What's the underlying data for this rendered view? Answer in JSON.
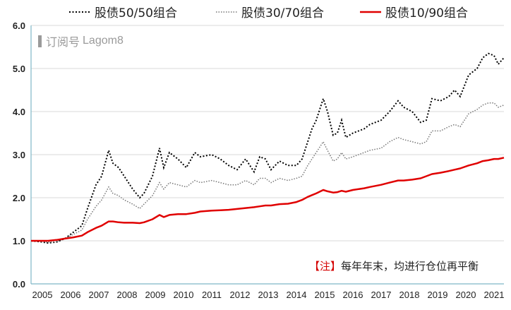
{
  "legend": [
    {
      "label": "股债50/50组合",
      "color": "#000000",
      "style": "dotted",
      "width": 2
    },
    {
      "label": "股债30/70组合",
      "color": "#777777",
      "style": "dotted",
      "width": 1.5
    },
    {
      "label": "股债10/90组合",
      "color": "#e00000",
      "style": "solid",
      "width": 2.5
    }
  ],
  "watermark": {
    "cn": "订阅号",
    "latin": "Lagom8"
  },
  "note": {
    "bracket": "【注】",
    "text": "每年年末，均进行仓位再平衡"
  },
  "chart_data": {
    "type": "line",
    "title": "",
    "xlabel": "",
    "ylabel": "",
    "xlim": [
      2005.0,
      2021.75
    ],
    "ylim": [
      0,
      6
    ],
    "yticks": [
      "0.0",
      "1.0",
      "2.0",
      "3.0",
      "4.0",
      "5.0",
      "6.0"
    ],
    "xticks": [
      "2005",
      "2006",
      "2007",
      "2008",
      "2009",
      "2010",
      "2011",
      "2012",
      "2013",
      "2014",
      "2015",
      "2016",
      "2017",
      "2018",
      "2019",
      "2020",
      "2021"
    ],
    "grid": true,
    "legend_position": "top",
    "series": [
      {
        "name": "股债50/50组合",
        "points": [
          [
            2005.0,
            1.0
          ],
          [
            2005.3,
            0.98
          ],
          [
            2005.6,
            0.95
          ],
          [
            2005.9,
            0.97
          ],
          [
            2006.2,
            1.05
          ],
          [
            2006.5,
            1.2
          ],
          [
            2006.8,
            1.35
          ],
          [
            2007.0,
            1.75
          ],
          [
            2007.3,
            2.3
          ],
          [
            2007.5,
            2.5
          ],
          [
            2007.75,
            3.1
          ],
          [
            2007.9,
            2.8
          ],
          [
            2008.1,
            2.7
          ],
          [
            2008.3,
            2.5
          ],
          [
            2008.6,
            2.2
          ],
          [
            2008.85,
            2.0
          ],
          [
            2009.0,
            2.1
          ],
          [
            2009.3,
            2.5
          ],
          [
            2009.55,
            3.15
          ],
          [
            2009.7,
            2.7
          ],
          [
            2009.9,
            3.05
          ],
          [
            2010.2,
            2.9
          ],
          [
            2010.5,
            2.7
          ],
          [
            2010.8,
            3.05
          ],
          [
            2011.0,
            2.95
          ],
          [
            2011.4,
            3.0
          ],
          [
            2011.7,
            2.9
          ],
          [
            2012.0,
            2.75
          ],
          [
            2012.3,
            2.65
          ],
          [
            2012.6,
            2.9
          ],
          [
            2012.9,
            2.6
          ],
          [
            2013.1,
            2.95
          ],
          [
            2013.3,
            2.9
          ],
          [
            2013.5,
            2.65
          ],
          [
            2013.8,
            2.85
          ],
          [
            2014.1,
            2.75
          ],
          [
            2014.4,
            2.75
          ],
          [
            2014.6,
            2.9
          ],
          [
            2014.8,
            3.3
          ],
          [
            2014.95,
            3.6
          ],
          [
            2015.1,
            3.8
          ],
          [
            2015.35,
            4.3
          ],
          [
            2015.5,
            4.0
          ],
          [
            2015.7,
            3.45
          ],
          [
            2015.85,
            3.5
          ],
          [
            2016.0,
            3.8
          ],
          [
            2016.15,
            3.4
          ],
          [
            2016.4,
            3.5
          ],
          [
            2016.8,
            3.6
          ],
          [
            2017.0,
            3.7
          ],
          [
            2017.4,
            3.8
          ],
          [
            2017.7,
            4.0
          ],
          [
            2018.0,
            4.25
          ],
          [
            2018.2,
            4.1
          ],
          [
            2018.5,
            4.0
          ],
          [
            2018.8,
            3.75
          ],
          [
            2019.0,
            3.8
          ],
          [
            2019.2,
            4.3
          ],
          [
            2019.5,
            4.25
          ],
          [
            2019.8,
            4.35
          ],
          [
            2020.0,
            4.5
          ],
          [
            2020.2,
            4.35
          ],
          [
            2020.5,
            4.85
          ],
          [
            2020.8,
            5.0
          ],
          [
            2021.0,
            5.25
          ],
          [
            2021.2,
            5.35
          ],
          [
            2021.4,
            5.3
          ],
          [
            2021.55,
            5.1
          ],
          [
            2021.75,
            5.25
          ]
        ]
      },
      {
        "name": "股债30/70组合",
        "points": [
          [
            2005.0,
            1.0
          ],
          [
            2005.3,
            0.99
          ],
          [
            2005.6,
            0.97
          ],
          [
            2005.9,
            0.98
          ],
          [
            2006.2,
            1.05
          ],
          [
            2006.5,
            1.15
          ],
          [
            2006.8,
            1.25
          ],
          [
            2007.0,
            1.5
          ],
          [
            2007.3,
            1.8
          ],
          [
            2007.5,
            1.95
          ],
          [
            2007.75,
            2.25
          ],
          [
            2007.9,
            2.1
          ],
          [
            2008.1,
            2.05
          ],
          [
            2008.3,
            1.95
          ],
          [
            2008.6,
            1.85
          ],
          [
            2008.85,
            1.75
          ],
          [
            2009.0,
            1.85
          ],
          [
            2009.3,
            2.05
          ],
          [
            2009.55,
            2.35
          ],
          [
            2009.7,
            2.2
          ],
          [
            2009.9,
            2.35
          ],
          [
            2010.2,
            2.3
          ],
          [
            2010.5,
            2.25
          ],
          [
            2010.8,
            2.4
          ],
          [
            2011.0,
            2.35
          ],
          [
            2011.4,
            2.4
          ],
          [
            2011.7,
            2.35
          ],
          [
            2012.0,
            2.3
          ],
          [
            2012.3,
            2.3
          ],
          [
            2012.6,
            2.4
          ],
          [
            2012.9,
            2.3
          ],
          [
            2013.1,
            2.45
          ],
          [
            2013.3,
            2.45
          ],
          [
            2013.5,
            2.35
          ],
          [
            2013.8,
            2.45
          ],
          [
            2014.1,
            2.4
          ],
          [
            2014.4,
            2.45
          ],
          [
            2014.6,
            2.5
          ],
          [
            2014.8,
            2.75
          ],
          [
            2014.95,
            2.9
          ],
          [
            2015.1,
            3.05
          ],
          [
            2015.35,
            3.3
          ],
          [
            2015.5,
            3.1
          ],
          [
            2015.7,
            2.85
          ],
          [
            2015.85,
            2.9
          ],
          [
            2016.0,
            3.05
          ],
          [
            2016.15,
            2.9
          ],
          [
            2016.4,
            2.95
          ],
          [
            2016.8,
            3.05
          ],
          [
            2017.0,
            3.1
          ],
          [
            2017.4,
            3.15
          ],
          [
            2017.7,
            3.3
          ],
          [
            2018.0,
            3.4
          ],
          [
            2018.2,
            3.35
          ],
          [
            2018.5,
            3.3
          ],
          [
            2018.8,
            3.25
          ],
          [
            2019.0,
            3.3
          ],
          [
            2019.2,
            3.55
          ],
          [
            2019.5,
            3.55
          ],
          [
            2019.8,
            3.65
          ],
          [
            2020.0,
            3.7
          ],
          [
            2020.2,
            3.65
          ],
          [
            2020.5,
            3.95
          ],
          [
            2020.8,
            4.05
          ],
          [
            2021.0,
            4.15
          ],
          [
            2021.2,
            4.2
          ],
          [
            2021.4,
            4.2
          ],
          [
            2021.55,
            4.1
          ],
          [
            2021.75,
            4.15
          ]
        ]
      },
      {
        "name": "股债10/90组合",
        "points": [
          [
            2005.0,
            1.0
          ],
          [
            2005.3,
            1.0
          ],
          [
            2005.6,
            1.0
          ],
          [
            2005.9,
            1.02
          ],
          [
            2006.2,
            1.05
          ],
          [
            2006.5,
            1.08
          ],
          [
            2006.8,
            1.12
          ],
          [
            2007.0,
            1.2
          ],
          [
            2007.3,
            1.3
          ],
          [
            2007.5,
            1.35
          ],
          [
            2007.75,
            1.45
          ],
          [
            2007.9,
            1.45
          ],
          [
            2008.1,
            1.43
          ],
          [
            2008.3,
            1.42
          ],
          [
            2008.6,
            1.42
          ],
          [
            2008.85,
            1.41
          ],
          [
            2009.0,
            1.43
          ],
          [
            2009.3,
            1.5
          ],
          [
            2009.55,
            1.6
          ],
          [
            2009.7,
            1.55
          ],
          [
            2009.9,
            1.6
          ],
          [
            2010.2,
            1.62
          ],
          [
            2010.5,
            1.62
          ],
          [
            2010.8,
            1.65
          ],
          [
            2011.0,
            1.68
          ],
          [
            2011.4,
            1.7
          ],
          [
            2011.7,
            1.71
          ],
          [
            2012.0,
            1.72
          ],
          [
            2012.3,
            1.74
          ],
          [
            2012.6,
            1.76
          ],
          [
            2012.9,
            1.78
          ],
          [
            2013.1,
            1.8
          ],
          [
            2013.3,
            1.82
          ],
          [
            2013.5,
            1.82
          ],
          [
            2013.8,
            1.85
          ],
          [
            2014.1,
            1.86
          ],
          [
            2014.4,
            1.9
          ],
          [
            2014.6,
            1.95
          ],
          [
            2014.8,
            2.02
          ],
          [
            2014.95,
            2.06
          ],
          [
            2015.1,
            2.1
          ],
          [
            2015.35,
            2.18
          ],
          [
            2015.5,
            2.15
          ],
          [
            2015.7,
            2.12
          ],
          [
            2015.85,
            2.13
          ],
          [
            2016.0,
            2.16
          ],
          [
            2016.15,
            2.14
          ],
          [
            2016.4,
            2.18
          ],
          [
            2016.8,
            2.22
          ],
          [
            2017.0,
            2.25
          ],
          [
            2017.4,
            2.3
          ],
          [
            2017.7,
            2.35
          ],
          [
            2018.0,
            2.4
          ],
          [
            2018.2,
            2.4
          ],
          [
            2018.5,
            2.42
          ],
          [
            2018.8,
            2.45
          ],
          [
            2019.0,
            2.5
          ],
          [
            2019.2,
            2.55
          ],
          [
            2019.5,
            2.58
          ],
          [
            2019.8,
            2.62
          ],
          [
            2020.0,
            2.65
          ],
          [
            2020.2,
            2.68
          ],
          [
            2020.5,
            2.75
          ],
          [
            2020.8,
            2.8
          ],
          [
            2021.0,
            2.85
          ],
          [
            2021.2,
            2.87
          ],
          [
            2021.4,
            2.9
          ],
          [
            2021.55,
            2.9
          ],
          [
            2021.75,
            2.93
          ]
        ]
      }
    ]
  }
}
